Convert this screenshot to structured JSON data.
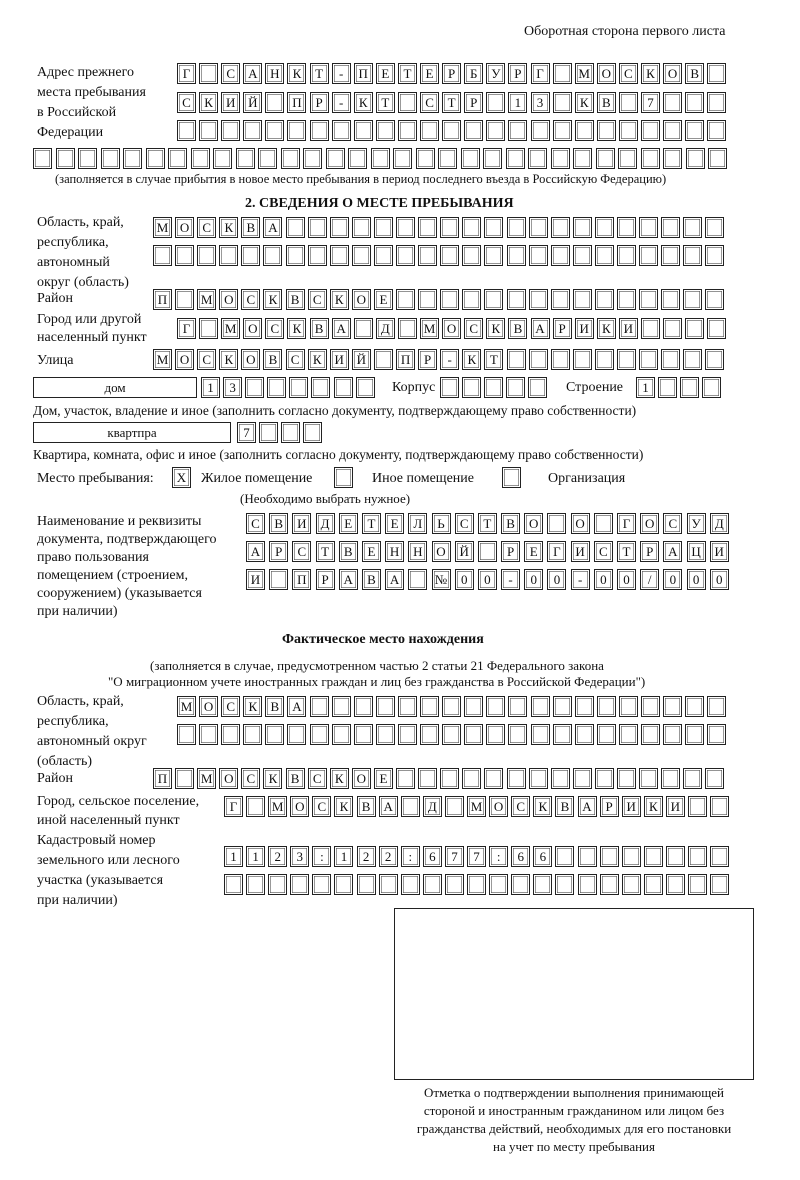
{
  "header": "Оборотная сторона первого листа",
  "prev_address": {
    "label": "Адрес прежнего\nместа пребывания\nв Российской\nФедерации",
    "rows": [
      [
        "Г",
        "",
        "С",
        "А",
        "Н",
        "К",
        "Т",
        "-",
        "П",
        "Е",
        "Т",
        "Е",
        "Р",
        "Б",
        "У",
        "Р",
        "Г",
        "",
        "М",
        "О",
        "С",
        "К",
        "О",
        "В"
      ],
      [
        "С",
        "К",
        "И",
        "Й",
        "",
        "П",
        "Р",
        "-",
        "К",
        "Т",
        "",
        "С",
        "Т",
        "Р",
        "",
        "1",
        "3",
        "",
        "К",
        "В",
        "",
        "7",
        "",
        ""
      ],
      [],
      []
    ],
    "note": "(заполняется в случае прибытия в новое место пребывания в период последнего въезда в Российскую Федерацию)"
  },
  "section2": {
    "title": "2. СВЕДЕНИЯ О МЕСТЕ ПРЕБЫВАНИЯ",
    "region_label": "Область, край,\nреспублика,\nавтономный\nокруг (область)",
    "region": [
      [
        "М",
        "О",
        "С",
        "К",
        "В",
        "А"
      ],
      []
    ],
    "district_label": "Район",
    "district": [
      "П",
      "",
      "М",
      "О",
      "С",
      "К",
      "В",
      "С",
      "К",
      "О",
      "Е"
    ],
    "city_label": "Город или другой\nнаселенный пункт",
    "city": [
      "Г",
      "",
      "М",
      "О",
      "С",
      "К",
      "В",
      "А",
      "",
      "Д",
      "",
      "М",
      "О",
      "С",
      "К",
      "В",
      "А",
      "Р",
      "И",
      "К",
      "И"
    ],
    "street_label": "Улица",
    "street": [
      "М",
      "О",
      "С",
      "К",
      "О",
      "В",
      "С",
      "К",
      "И",
      "Й",
      "",
      "П",
      "Р",
      "-",
      "К",
      "Т"
    ],
    "house_type": "дом",
    "house": [
      "1",
      "3"
    ],
    "korpus_label": "Корпус",
    "building_label": "Строение",
    "building": [
      "1"
    ],
    "house_note": "Дом, участок, владение и иное (заполнить согласно документу, подтверждающему право собственности)",
    "flat_type": "квартпра",
    "flat": [
      "7"
    ],
    "flat_note": "Квартира, комната, офис и иное (заполнить согласно документу, подтверждающему право собственности)",
    "place_label": "Место пребывания:",
    "place_mark": "X",
    "opt1": "Жилое помещение",
    "opt2": "Иное помещение",
    "opt3": "Организация",
    "place_note": "(Необходимо выбрать нужное)",
    "doc_label": "Наименование и реквизиты\nдокумента, подтверждающего\nправо пользования\nпомещением (строением,\nсооружением) (указывается\nпри наличии)",
    "doc": [
      [
        "С",
        "В",
        "И",
        "Д",
        "Е",
        "Т",
        "Е",
        "Л",
        "Ь",
        "С",
        "Т",
        "В",
        "О",
        "",
        "О",
        "",
        "Г",
        "О",
        "С",
        "У",
        "Д"
      ],
      [
        "А",
        "Р",
        "С",
        "Т",
        "В",
        "Е",
        "Н",
        "Н",
        "О",
        "Й",
        "",
        "Р",
        "Е",
        "Г",
        "И",
        "С",
        "Т",
        "Р",
        "А",
        "Ц",
        "И"
      ],
      [
        "И",
        "",
        "П",
        "Р",
        "А",
        "В",
        "А",
        "",
        "№",
        "0",
        "0",
        "-",
        "0",
        "0",
        "-",
        "0",
        "0",
        "/",
        "0",
        "0",
        "0"
      ]
    ]
  },
  "actual": {
    "title": "Фактическое место нахождения",
    "note1": "(заполняется в случае, предусмотренном частью 2 статьи 21 Федерального закона",
    "note2": "\"О миграционном учете иностранных граждан и лиц без гражданства в Российской Федерации\")",
    "region_label": "Область, край,\nреспублика,\nавтономный округ\n(область)",
    "region": [
      [
        "М",
        "О",
        "С",
        "К",
        "В",
        "А"
      ],
      []
    ],
    "district_label": "Район",
    "district": [
      "П",
      "",
      "М",
      "О",
      "С",
      "К",
      "В",
      "С",
      "К",
      "О",
      "Е"
    ],
    "city_label": "Город, сельское поселение,\nиной населенный пункт",
    "city": [
      "Г",
      "",
      "М",
      "О",
      "С",
      "К",
      "В",
      "А",
      "",
      "Д",
      "",
      "М",
      "О",
      "С",
      "К",
      "В",
      "А",
      "Р",
      "И",
      "К",
      "И"
    ],
    "cadastre_label": "Кадастровый номер\nземельного или лесного\nучастка (указывается\nпри наличии)",
    "cadastre": [
      [
        "1",
        "1",
        "2",
        "3",
        ":",
        "1",
        "2",
        "2",
        ":",
        "6",
        "7",
        "7",
        ":",
        "6",
        "6"
      ],
      []
    ]
  },
  "stamp_caption": "Отметка о подтверждении выполнения принимающей\nстороной и иностранным гражданином или лицом без\nгражданства действий, необходимых для его постановки\nна учет по месту пребывания"
}
